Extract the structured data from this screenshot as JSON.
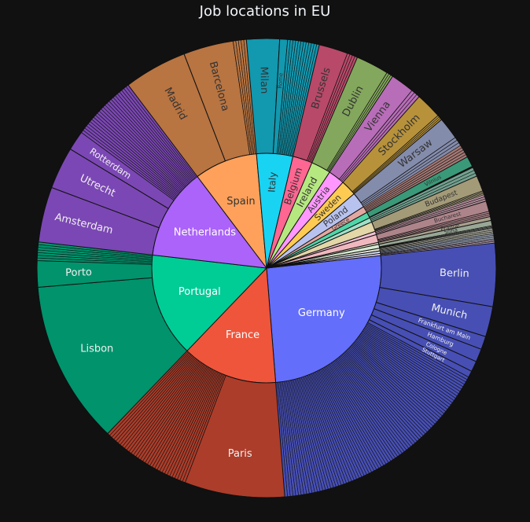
{
  "chart_data": {
    "type": "sunburst",
    "title": "Job locations in EU",
    "countries": [
      {
        "name": "Germany",
        "value": 27.5,
        "color": "#636efa",
        "cities": [
          {
            "name": "Berlin",
            "value": 4.8
          },
          {
            "name": "Munich",
            "value": 2.3
          },
          {
            "name": "Frankfurt am Main",
            "value": 1.0
          },
          {
            "name": "Hamburg",
            "value": 1.0
          },
          {
            "name": "Cologne",
            "value": 0.8
          },
          {
            "name": "Stuttgart",
            "value": 0.5
          },
          {
            "name": "",
            "value": 17.1
          }
        ]
      },
      {
        "name": "France",
        "value": 14.5,
        "color": "#ef553b",
        "cities": [
          {
            "name": "Paris",
            "value": 7.6
          },
          {
            "name": "",
            "value": 6.9
          }
        ]
      },
      {
        "name": "Portugal",
        "value": 15.8,
        "color": "#00cc96",
        "cities": [
          {
            "name": "Lisbon",
            "value": 12.4
          },
          {
            "name": "Porto",
            "value": 2.0
          },
          {
            "name": "",
            "value": 1.4
          }
        ]
      },
      {
        "name": "Netherlands",
        "value": 13.9,
        "color": "#ab63fa",
        "cities": [
          {
            "name": "Amsterdam",
            "value": 4.2
          },
          {
            "name": "Utrecht",
            "value": 3.2
          },
          {
            "name": "Rotterdam",
            "value": 1.5
          },
          {
            "name": "",
            "value": 5.0
          }
        ]
      },
      {
        "name": "Spain",
        "value": 9.6,
        "color": "#ffa15a",
        "cities": [
          {
            "name": "Madrid",
            "value": 4.8
          },
          {
            "name": "Barcelona",
            "value": 3.8
          },
          {
            "name": "",
            "value": 1.0
          }
        ]
      },
      {
        "name": "Italy",
        "value": 5.5,
        "color": "#19d3f3",
        "cities": [
          {
            "name": "Milan",
            "value": 2.5
          },
          {
            "name": "Rome",
            "value": 0.6
          },
          {
            "name": "",
            "value": 2.4
          }
        ]
      },
      {
        "name": "Belgium",
        "value": 3.0,
        "color": "#ff6692",
        "cities": [
          {
            "name": "Brussels",
            "value": 2.2
          },
          {
            "name": "",
            "value": 0.8
          }
        ]
      },
      {
        "name": "Ireland",
        "value": 3.0,
        "color": "#b6e880",
        "cities": [
          {
            "name": "Dublin",
            "value": 2.5
          },
          {
            "name": "",
            "value": 0.5
          }
        ]
      },
      {
        "name": "Austria",
        "value": 2.5,
        "color": "#ff97ff",
        "cities": [
          {
            "name": "Vienna",
            "value": 1.8
          },
          {
            "name": "",
            "value": 0.7
          }
        ]
      },
      {
        "name": "Sweden",
        "value": 2.4,
        "color": "#fecb52",
        "cities": [
          {
            "name": "Stockholm",
            "value": 2.0
          },
          {
            "name": "",
            "value": 0.4
          }
        ]
      },
      {
        "name": "Poland",
        "value": 2.4,
        "color": "#b8c2ef",
        "cities": [
          {
            "name": "Warsaw",
            "value": 1.7
          },
          {
            "name": "",
            "value": 0.7
          }
        ]
      },
      {
        "name": "Greece",
        "value": 1.0,
        "color": "#e3a7a1",
        "cities": [
          {
            "name": "",
            "value": 1.0
          }
        ]
      },
      {
        "name": "",
        "value": 0.9,
        "color": "#50d5a7",
        "cities": [
          {
            "name": "Vilnius",
            "value": 0.8
          },
          {
            "name": "",
            "value": 0.1
          }
        ]
      },
      {
        "name": "",
        "value": 0.7,
        "color": "#9fe0c8",
        "cities": [
          {
            "name": "",
            "value": 0.7
          }
        ]
      },
      {
        "name": "",
        "value": 1.5,
        "color": "#e3d6a7",
        "cities": [
          {
            "name": "Budapest",
            "value": 1.2
          },
          {
            "name": "",
            "value": 0.3
          }
        ]
      },
      {
        "name": "",
        "value": 0.5,
        "color": "#f1c0d2",
        "cities": [
          {
            "name": "",
            "value": 0.5
          }
        ]
      },
      {
        "name": "",
        "value": 1.2,
        "color": "#f0b7bf",
        "cities": [
          {
            "name": "Bucharest",
            "value": 0.8
          },
          {
            "name": "",
            "value": 0.4
          }
        ]
      },
      {
        "name": "",
        "value": 0.3,
        "color": "#e8ddc4",
        "cities": [
          {
            "name": "Prague",
            "value": 0.3
          }
        ]
      },
      {
        "name": "",
        "value": 0.6,
        "color": "#d5e8d0",
        "cities": [
          {
            "name": "Sofia",
            "value": 0.4
          },
          {
            "name": "",
            "value": 0.2
          }
        ]
      },
      {
        "name": "",
        "value": 0.4,
        "color": "#e8e6d6",
        "cities": [
          {
            "name": "",
            "value": 0.4
          }
        ]
      },
      {
        "name": "",
        "value": 0.4,
        "color": "#c9d7ee",
        "cities": [
          {
            "name": "",
            "value": 0.4
          }
        ]
      },
      {
        "name": "",
        "value": 0.3,
        "color": "#f5d9f0",
        "cities": [
          {
            "name": "",
            "value": 0.3
          }
        ]
      }
    ]
  }
}
